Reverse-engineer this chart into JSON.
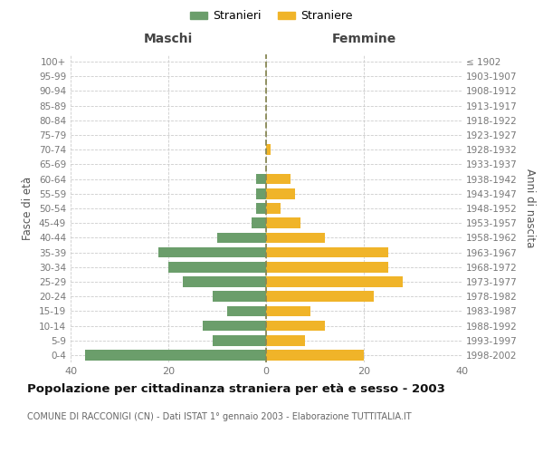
{
  "age_groups": [
    "0-4",
    "5-9",
    "10-14",
    "15-19",
    "20-24",
    "25-29",
    "30-34",
    "35-39",
    "40-44",
    "45-49",
    "50-54",
    "55-59",
    "60-64",
    "65-69",
    "70-74",
    "75-79",
    "80-84",
    "85-89",
    "90-94",
    "95-99",
    "100+"
  ],
  "birth_years": [
    "1998-2002",
    "1993-1997",
    "1988-1992",
    "1983-1987",
    "1978-1982",
    "1973-1977",
    "1968-1972",
    "1963-1967",
    "1958-1962",
    "1953-1957",
    "1948-1952",
    "1943-1947",
    "1938-1942",
    "1933-1937",
    "1928-1932",
    "1923-1927",
    "1918-1922",
    "1913-1917",
    "1908-1912",
    "1903-1907",
    "≤ 1902"
  ],
  "males": [
    37,
    11,
    13,
    8,
    11,
    17,
    20,
    22,
    10,
    3,
    2,
    2,
    2,
    0,
    0,
    0,
    0,
    0,
    0,
    0,
    0
  ],
  "females": [
    20,
    8,
    12,
    9,
    22,
    28,
    25,
    25,
    12,
    7,
    3,
    6,
    5,
    0,
    1,
    0,
    0,
    0,
    0,
    0,
    0
  ],
  "male_color": "#6b9e6b",
  "female_color": "#f0b429",
  "background_color": "#ffffff",
  "grid_color": "#cccccc",
  "title": "Popolazione per cittadinanza straniera per età e sesso - 2003",
  "subtitle": "COMUNE DI RACCONIGI (CN) - Dati ISTAT 1° gennaio 2003 - Elaborazione TUTTITALIA.IT",
  "left_label": "Maschi",
  "right_label": "Femmine",
  "ylabel_left": "Fasce di età",
  "ylabel_right": "Anni di nascita",
  "legend_male": "Stranieri",
  "legend_female": "Straniere",
  "xlim": 40,
  "dashed_line_color": "#888855"
}
